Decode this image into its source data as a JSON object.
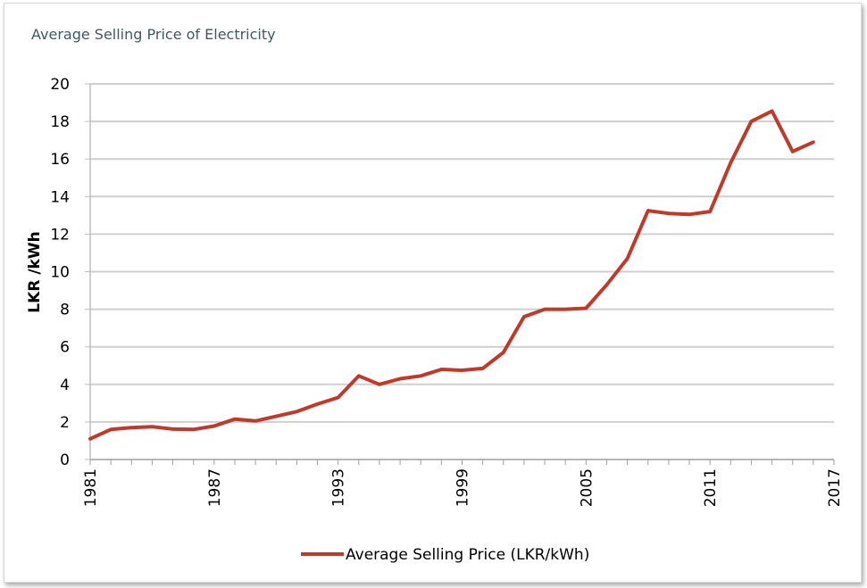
{
  "chart_data": {
    "type": "line",
    "title": "Average Selling Price of Electricity",
    "xlabel": "",
    "ylabel": "LKR /kWh",
    "x_tick_labels": [
      "1981",
      "1987",
      "1993",
      "1999",
      "2005",
      "2011",
      "2017"
    ],
    "y_tick_labels": [
      "0",
      "2",
      "4",
      "6",
      "8",
      "10",
      "12",
      "14",
      "16",
      "18",
      "20"
    ],
    "xlim": [
      1981,
      2017
    ],
    "ylim": [
      0,
      20
    ],
    "grid": "horizontal",
    "legend_position": "bottom",
    "series": [
      {
        "name": "Average Selling Price (LKR/kWh)",
        "color": "#c0392b",
        "x": [
          1981,
          1982,
          1983,
          1984,
          1985,
          1986,
          1987,
          1988,
          1989,
          1990,
          1991,
          1992,
          1993,
          1994,
          1995,
          1996,
          1997,
          1998,
          1999,
          2000,
          2001,
          2002,
          2003,
          2004,
          2005,
          2006,
          2007,
          2008,
          2009,
          2010,
          2011,
          2012,
          2013,
          2014,
          2015,
          2016
        ],
        "values": [
          1.1,
          1.6,
          1.7,
          1.75,
          1.62,
          1.6,
          1.78,
          2.15,
          2.05,
          2.3,
          2.55,
          2.95,
          3.3,
          4.45,
          4.0,
          4.3,
          4.45,
          4.8,
          4.75,
          4.85,
          5.7,
          7.6,
          8.0,
          8.0,
          8.05,
          9.3,
          10.7,
          13.25,
          13.1,
          13.05,
          13.2,
          15.8,
          18.0,
          18.55,
          16.4,
          16.9
        ]
      }
    ]
  }
}
